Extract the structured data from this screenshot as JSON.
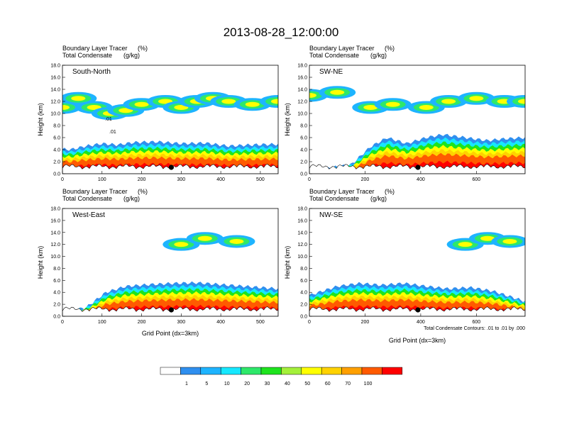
{
  "title": "2013-08-28_12:00:00",
  "chart_data": {
    "type": "heatmap",
    "field_label": "Boundary Layer Tracer",
    "field_units": "(%)",
    "contour_label": "Total Condensate",
    "contour_units": "(g/kg)",
    "ylabel": "Height (km)",
    "xlabel": "Grid Point (dx=3km)",
    "contour_note": "Total Condensate Contours: .01 to .01 by .000",
    "yticks": [
      "0.0",
      "2.0",
      "4.0",
      "6.0",
      "8.0",
      "10.0",
      "12.0",
      "14.0",
      "16.0",
      "18.0"
    ],
    "ylim": [
      0,
      18
    ],
    "colorbar": {
      "labels": [
        "1",
        "5",
        "10",
        "20",
        "30",
        "40",
        "50",
        "60",
        "70",
        "100"
      ],
      "colors": [
        "#ffffff",
        "#2f8fef",
        "#1eb4ff",
        "#16e8ff",
        "#2ee86a",
        "#1ee41e",
        "#a4f03a",
        "#ffff00",
        "#ffd200",
        "#ffa000",
        "#ff5a00",
        "#ff0000"
      ]
    },
    "panels": [
      {
        "name": "South-North",
        "xlim": [
          0,
          545
        ],
        "xticks": [
          "0",
          "100",
          "200",
          "300",
          "400",
          "500"
        ],
        "marker_x": 275,
        "contour_labels": [
          ".01",
          ".01"
        ],
        "boundary_layer_top": [
          [
            0,
            4.1
          ],
          [
            20,
            4.0
          ],
          [
            60,
            4.6
          ],
          [
            100,
            5.0
          ],
          [
            140,
            4.8
          ],
          [
            180,
            5.2
          ],
          [
            240,
            5.3
          ],
          [
            300,
            5.0
          ],
          [
            360,
            5.1
          ],
          [
            420,
            4.6
          ],
          [
            480,
            4.8
          ],
          [
            545,
            4.9
          ]
        ],
        "upper_layer": [
          [
            0,
            11
          ],
          [
            40,
            12.5
          ],
          [
            80,
            11
          ],
          [
            120,
            10
          ],
          [
            160,
            10.5
          ],
          [
            200,
            11.5
          ],
          [
            260,
            12
          ],
          [
            300,
            11
          ],
          [
            340,
            12
          ],
          [
            380,
            12.5
          ],
          [
            420,
            12
          ],
          [
            480,
            11.5
          ],
          [
            545,
            12
          ]
        ]
      },
      {
        "name": "SW-NE",
        "xlim": [
          0,
          775
        ],
        "xticks": [
          "0",
          "200",
          "400",
          "600"
        ],
        "marker_x": 390,
        "boundary_layer_top": [
          [
            0,
            0.5
          ],
          [
            150,
            1.5
          ],
          [
            220,
            4.5
          ],
          [
            280,
            6
          ],
          [
            350,
            5
          ],
          [
            420,
            6
          ],
          [
            480,
            6.5
          ],
          [
            560,
            6
          ],
          [
            640,
            5.5
          ],
          [
            700,
            5.8
          ],
          [
            775,
            6
          ]
        ],
        "upper_layer": [
          [
            0,
            13
          ],
          [
            100,
            13.5
          ],
          [
            220,
            11
          ],
          [
            300,
            11.5
          ],
          [
            420,
            11
          ],
          [
            500,
            12
          ],
          [
            600,
            12.5
          ],
          [
            700,
            12
          ],
          [
            775,
            12
          ]
        ]
      },
      {
        "name": "West-East",
        "xlim": [
          0,
          545
        ],
        "xticks": [
          "0",
          "100",
          "200",
          "300",
          "400",
          "500"
        ],
        "marker_x": 275,
        "boundary_layer_top": [
          [
            0,
            0.6
          ],
          [
            60,
            1.5
          ],
          [
            110,
            4
          ],
          [
            160,
            5
          ],
          [
            220,
            5.3
          ],
          [
            280,
            5.5
          ],
          [
            340,
            5.6
          ],
          [
            400,
            5.3
          ],
          [
            460,
            5.0
          ],
          [
            545,
            4.6
          ]
        ],
        "upper_layer": [
          [
            300,
            12
          ],
          [
            360,
            13
          ],
          [
            440,
            12.5
          ]
        ]
      },
      {
        "name": "NW-SE",
        "xlim": [
          0,
          775
        ],
        "xticks": [
          "0",
          "200",
          "400",
          "600"
        ],
        "marker_x": 390,
        "boundary_layer_top": [
          [
            0,
            3.5
          ],
          [
            100,
            5
          ],
          [
            180,
            5.5
          ],
          [
            260,
            5.2
          ],
          [
            340,
            5.5
          ],
          [
            420,
            5
          ],
          [
            500,
            4.6
          ],
          [
            580,
            4.8
          ],
          [
            660,
            4.2
          ],
          [
            775,
            2.5
          ]
        ],
        "upper_layer": [
          [
            560,
            12
          ],
          [
            640,
            13
          ],
          [
            720,
            12.5
          ]
        ]
      }
    ]
  }
}
